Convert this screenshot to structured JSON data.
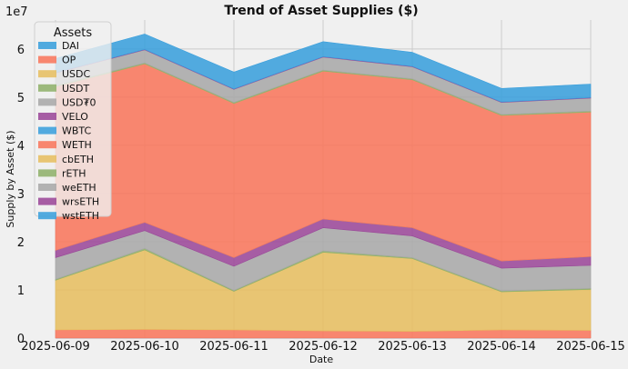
{
  "chart_data": {
    "type": "area",
    "stacked": true,
    "title": "Trend of Asset Supplies ($)",
    "xlabel": "Date",
    "ylabel": "Supply by Asset ($)",
    "y_scale_label": "1e7",
    "ylim": [
      0,
      6.6
    ],
    "y_unit_multiplier": 10000000,
    "yticks": [
      0,
      1,
      2,
      3,
      4,
      5,
      6
    ],
    "grid": true,
    "legend": {
      "title": "Assets",
      "placement": "top-left"
    },
    "x": [
      "2025-06-09",
      "2025-06-10",
      "2025-06-11",
      "2025-06-12",
      "2025-06-13",
      "2025-06-14",
      "2025-06-15"
    ],
    "series": [
      {
        "name": "DAI",
        "color": "#3a9fdc",
        "values": [
          0.0,
          0.0,
          0.0,
          0.0,
          0.0,
          0.0,
          0.0
        ]
      },
      {
        "name": "OP",
        "color": "#f8765c",
        "values": [
          0.17,
          0.18,
          0.17,
          0.15,
          0.14,
          0.17,
          0.16
        ]
      },
      {
        "name": "USDC",
        "color": "#e6be61",
        "values": [
          1.03,
          1.65,
          0.8,
          1.63,
          1.51,
          0.79,
          0.85
        ]
      },
      {
        "name": "USDT",
        "color": "#8fb06b",
        "values": [
          0.02,
          0.03,
          0.02,
          0.03,
          0.02,
          0.02,
          0.02
        ]
      },
      {
        "name": "USD₮0",
        "color": "#a8a8a8",
        "values": [
          0.45,
          0.37,
          0.5,
          0.48,
          0.45,
          0.47,
          0.48
        ]
      },
      {
        "name": "VELO",
        "color": "#9b4899",
        "values": [
          0.15,
          0.17,
          0.18,
          0.18,
          0.17,
          0.15,
          0.18
        ]
      },
      {
        "name": "WBTC",
        "color": "#3a9fdc",
        "values": [
          0.0,
          0.0,
          0.0,
          0.0,
          0.0,
          0.0,
          0.0
        ]
      },
      {
        "name": "WETH",
        "color": "#f8765c",
        "values": [
          3.4,
          3.29,
          3.2,
          3.07,
          3.07,
          3.02,
          3.0
        ]
      },
      {
        "name": "cbETH",
        "color": "#e6be61",
        "values": [
          0.0,
          0.0,
          0.0,
          0.0,
          0.0,
          0.0,
          0.0
        ]
      },
      {
        "name": "rETH",
        "color": "#8fb06b",
        "values": [
          0.02,
          0.02,
          0.02,
          0.02,
          0.02,
          0.02,
          0.02
        ]
      },
      {
        "name": "weETH",
        "color": "#a8a8a8",
        "values": [
          0.26,
          0.27,
          0.27,
          0.27,
          0.25,
          0.25,
          0.27
        ]
      },
      {
        "name": "wrsETH",
        "color": "#9b4899",
        "values": [
          0.01,
          0.01,
          0.01,
          0.01,
          0.01,
          0.01,
          0.01
        ]
      },
      {
        "name": "wstETH",
        "color": "#3a9fdc",
        "values": [
          0.29,
          0.32,
          0.35,
          0.31,
          0.29,
          0.28,
          0.28
        ]
      }
    ]
  }
}
